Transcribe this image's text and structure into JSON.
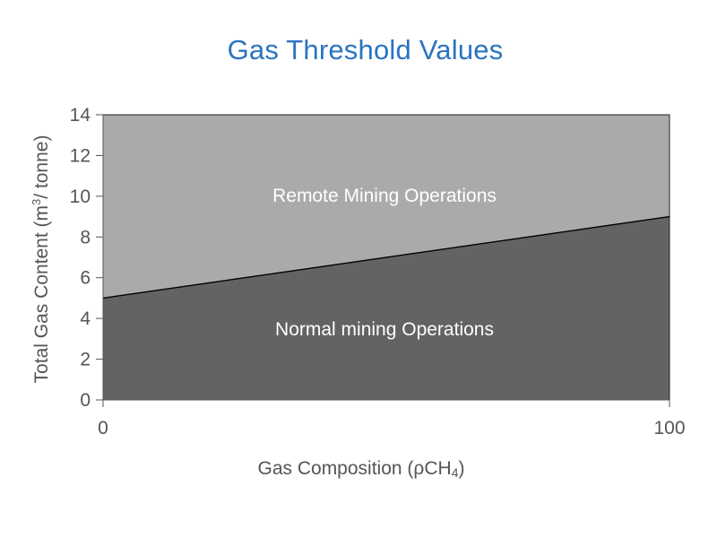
{
  "chart_data": {
    "type": "area",
    "title": "Gas Threshold Values",
    "xlabel": "Gas Composition (ρCH",
    "xlabel_sub": "4",
    "xlabel_end": ")",
    "ylabel": "Total Gas Content  (m",
    "ylabel_sup": "3",
    "ylabel_end": "/ tonne)",
    "xlim": [
      0,
      100
    ],
    "ylim": [
      0,
      14
    ],
    "x_ticks": [
      0,
      100
    ],
    "y_ticks": [
      0,
      2,
      4,
      6,
      8,
      10,
      12,
      14
    ],
    "grid": false,
    "threshold_line": {
      "x": [
        0,
        100
      ],
      "y": [
        5,
        9
      ]
    },
    "regions": [
      {
        "name": "Remote Mining Operations",
        "position": "above-line",
        "color": "#aaaaaa"
      },
      {
        "name": "Normal mining Operations",
        "position": "below-line",
        "color": "#636363"
      }
    ],
    "line_color": "#000000",
    "axis_color": "#555555"
  }
}
